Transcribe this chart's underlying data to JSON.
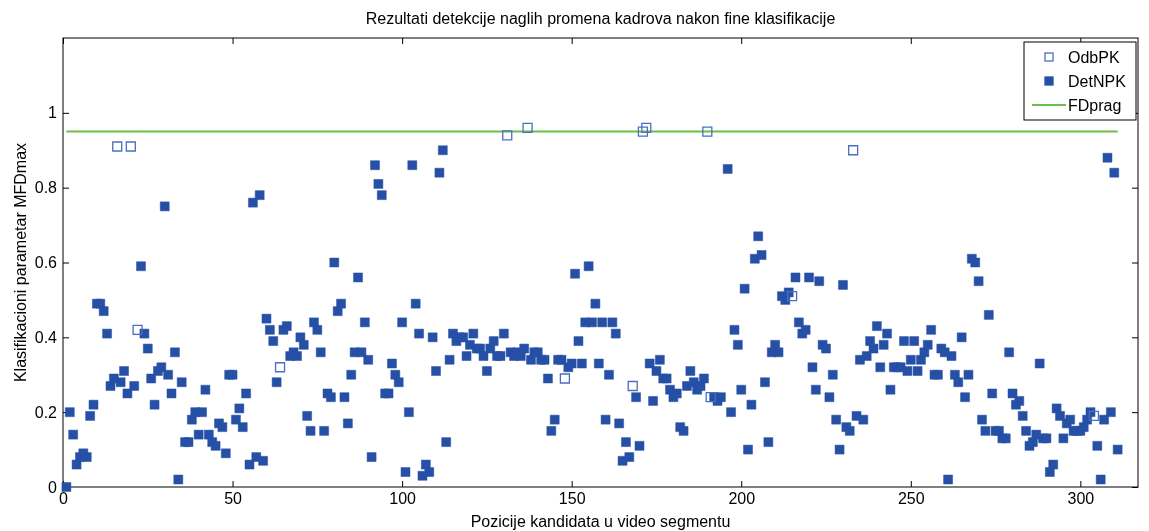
{
  "chart_data": {
    "type": "scatter",
    "title": "Rezultati detekcije naglih promena kadrova nakon fine klasifikacije",
    "xlabel": "Pozicije kandidata u video segmentu",
    "ylabel": "Klasifikacioni parametar MFDmax",
    "xlim": [
      0,
      317
    ],
    "ylim": [
      0,
      1.2
    ],
    "xticks": [
      0,
      50,
      100,
      150,
      200,
      250,
      300
    ],
    "yticks": [
      0,
      0.2,
      0.4,
      0.6,
      0.8,
      1
    ],
    "grid": false,
    "legend": "top right",
    "marker": "square",
    "series": [
      {
        "name": "OdbPK",
        "color": "#4a6fc0",
        "x": [
          16,
          20,
          22,
          64,
          131,
          137,
          148,
          168,
          171,
          172,
          190,
          191,
          215,
          233,
          304
        ],
        "values": [
          0.91,
          0.91,
          0.42,
          0.32,
          0.94,
          0.96,
          0.29,
          0.27,
          0.95,
          0.96,
          0.95,
          0.24,
          0.51,
          0.9,
          0.19
        ]
      },
      {
        "name": "DetNPK",
        "color": "#2650a6",
        "x": [
          1,
          2,
          3,
          4,
          5,
          6,
          7,
          8,
          9,
          10,
          11,
          12,
          13,
          14,
          15,
          17,
          18,
          19,
          21,
          23,
          24,
          25,
          26,
          27,
          28,
          29,
          30,
          31,
          32,
          33,
          34,
          35,
          36,
          37,
          38,
          39,
          40,
          41,
          42,
          43,
          44,
          45,
          46,
          47,
          48,
          49,
          50,
          51,
          52,
          53,
          54,
          55,
          56,
          57,
          58,
          59,
          60,
          61,
          62,
          63,
          65,
          66,
          67,
          68,
          69,
          70,
          71,
          72,
          73,
          74,
          75,
          76,
          77,
          78,
          79,
          80,
          81,
          82,
          83,
          84,
          85,
          86,
          87,
          88,
          89,
          90,
          91,
          92,
          93,
          94,
          95,
          96,
          97,
          98,
          99,
          100,
          101,
          102,
          103,
          104,
          105,
          106,
          107,
          108,
          109,
          110,
          111,
          112,
          113,
          114,
          115,
          116,
          117,
          118,
          119,
          120,
          121,
          122,
          123,
          124,
          125,
          126,
          127,
          128,
          129,
          130,
          132,
          133,
          134,
          135,
          136,
          138,
          139,
          140,
          141,
          142,
          143,
          144,
          145,
          146,
          147,
          149,
          150,
          151,
          152,
          153,
          154,
          155,
          156,
          157,
          158,
          159,
          160,
          161,
          162,
          163,
          164,
          165,
          166,
          167,
          169,
          170,
          173,
          174,
          175,
          176,
          177,
          178,
          179,
          180,
          181,
          182,
          183,
          184,
          185,
          186,
          187,
          188,
          189,
          192,
          193,
          194,
          196,
          197,
          198,
          199,
          200,
          201,
          202,
          203,
          204,
          205,
          206,
          207,
          208,
          209,
          210,
          211,
          212,
          213,
          214,
          216,
          217,
          218,
          219,
          220,
          221,
          222,
          223,
          224,
          225,
          226,
          227,
          228,
          229,
          230,
          231,
          232,
          234,
          235,
          236,
          237,
          238,
          239,
          240,
          241,
          242,
          243,
          244,
          245,
          246,
          247,
          248,
          249,
          250,
          251,
          252,
          253,
          254,
          255,
          256,
          257,
          258,
          259,
          260,
          261,
          262,
          263,
          264,
          265,
          266,
          267,
          268,
          269,
          270,
          271,
          272,
          273,
          274,
          275,
          276,
          277,
          278,
          279,
          280,
          281,
          282,
          283,
          284,
          285,
          286,
          287,
          288,
          289,
          290,
          291,
          292,
          293,
          294,
          295,
          296,
          297,
          298,
          299,
          300,
          301,
          302,
          303,
          305,
          306,
          307,
          308,
          309,
          310,
          311
        ],
        "values": [
          0,
          0.2,
          0.14,
          0.06,
          0.08,
          0.09,
          0.08,
          0.19,
          0.22,
          0.49,
          0.49,
          0.47,
          0.41,
          0.27,
          0.29,
          0.28,
          0.31,
          0.25,
          0.27,
          0.59,
          0.41,
          0.37,
          0.29,
          0.22,
          0.31,
          0.32,
          0.75,
          0.3,
          0.25,
          0.36,
          0.02,
          0.28,
          0.12,
          0.12,
          0.18,
          0.2,
          0.14,
          0.2,
          0.26,
          0.14,
          0.12,
          0.11,
          0.17,
          0.16,
          0.09,
          0.3,
          0.3,
          0.18,
          0.21,
          0.16,
          0.25,
          0.06,
          0.76,
          0.08,
          0.78,
          0.07,
          0.45,
          0.42,
          0.39,
          0.28,
          0.42,
          0.43,
          0.35,
          0.36,
          0.35,
          0.4,
          0.38,
          0.19,
          0.15,
          0.44,
          0.42,
          0.36,
          0.15,
          0.25,
          0.24,
          0.6,
          0.47,
          0.49,
          0.24,
          0.17,
          0.3,
          0.36,
          0.56,
          0.36,
          0.44,
          0.34,
          0.08,
          0.86,
          0.81,
          0.78,
          0.25,
          0.25,
          0.33,
          0.3,
          0.28,
          0.44,
          0.04,
          0.2,
          0.86,
          0.49,
          0.41,
          0.03,
          0.06,
          0.04,
          0.4,
          0.31,
          0.84,
          0.9,
          0.12,
          0.34,
          0.41,
          0.39,
          0.4,
          0.4,
          0.35,
          0.38,
          0.41,
          0.37,
          0.37,
          0.35,
          0.31,
          0.37,
          0.39,
          0.35,
          0.35,
          0.41,
          0.36,
          0.35,
          0.36,
          0.35,
          0.37,
          0.34,
          0.36,
          0.36,
          0.34,
          0.34,
          0.29,
          0.15,
          0.18,
          0.34,
          0.34,
          0.32,
          0.33,
          0.57,
          0.39,
          0.33,
          0.44,
          0.59,
          0.44,
          0.49,
          0.33,
          0.44,
          0.18,
          0.3,
          0.44,
          0.41,
          0.17,
          0.07,
          0.12,
          0.08,
          0.24,
          0.11,
          0.33,
          0.23,
          0.31,
          0.34,
          0.29,
          0.29,
          0.26,
          0.24,
          0.25,
          0.16,
          0.15,
          0.27,
          0.31,
          0.28,
          0.26,
          0.27,
          0.29,
          0.24,
          0.23,
          0.24,
          0.85,
          0.2,
          0.42,
          0.38,
          0.26,
          0.53,
          0.1,
          0.22,
          0.61,
          0.67,
          0.62,
          0.28,
          0.12,
          0.36,
          0.38,
          0.36,
          0.51,
          0.5,
          0.52,
          0.56,
          0.44,
          0.41,
          0.42,
          0.56,
          0.32,
          0.26,
          0.55,
          0.38,
          0.37,
          0.24,
          0.3,
          0.18,
          0.1,
          0.54,
          0.16,
          0.15,
          0.19,
          0.34,
          0.18,
          0.35,
          0.39,
          0.37,
          0.43,
          0.32,
          0.38,
          0.41,
          0.26,
          0.32,
          0.32,
          0.32,
          0.39,
          0.31,
          0.34,
          0.39,
          0.31,
          0.34,
          0.36,
          0.38,
          0.42,
          0.3,
          0.3,
          0.37,
          0.36,
          0.02,
          0.35,
          0.3,
          0.28,
          0.4,
          0.24,
          0.3,
          0.61,
          0.6,
          0.55,
          0.18,
          0.15,
          0.46,
          0.25,
          0.15,
          0.15,
          0.13,
          0.13,
          0.36,
          0.25,
          0.22,
          0.23,
          0.19,
          0.15,
          0.11,
          0.12,
          0.14,
          0.33,
          0.13,
          0.13,
          0.04,
          0.06,
          0.21,
          0.19,
          0.13,
          0.17,
          0.18,
          0.15,
          0.15,
          0.15,
          0.16,
          0.18,
          0.2,
          0.11,
          0.02,
          0.18,
          0.88,
          0.2,
          0.84,
          0.1
        ]
      },
      {
        "name": "FDprag",
        "type": "line",
        "marker": "none",
        "color": "#6abf4b",
        "line_style": "solid",
        "x": [
          1,
          311
        ],
        "values": [
          0.95,
          0.95
        ]
      }
    ]
  }
}
